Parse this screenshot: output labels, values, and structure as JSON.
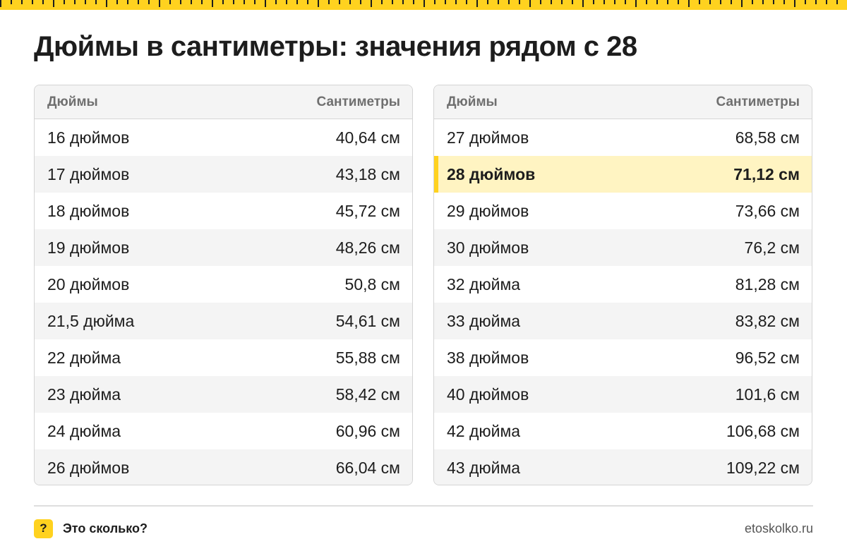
{
  "title": "Дюймы в сантиметры: значения рядом с 28",
  "colors": {
    "accent": "#ffd21f",
    "highlight_bg": "#fff4c2",
    "stripe_bg": "#f4f4f4"
  },
  "tables": [
    {
      "headers": {
        "inches": "Дюймы",
        "cm": "Сантиметры"
      },
      "rows": [
        {
          "inches": "16 дюймов",
          "cm": "40,64 см"
        },
        {
          "inches": "17 дюймов",
          "cm": "43,18 см"
        },
        {
          "inches": "18 дюймов",
          "cm": "45,72 см"
        },
        {
          "inches": "19 дюймов",
          "cm": "48,26 см"
        },
        {
          "inches": "20 дюймов",
          "cm": "50,8 см"
        },
        {
          "inches": "21,5 дюйма",
          "cm": "54,61 см"
        },
        {
          "inches": "22 дюйма",
          "cm": "55,88 см"
        },
        {
          "inches": "23 дюйма",
          "cm": "58,42 см"
        },
        {
          "inches": "24 дюйма",
          "cm": "60,96 см"
        },
        {
          "inches": "26 дюймов",
          "cm": "66,04 см"
        }
      ]
    },
    {
      "headers": {
        "inches": "Дюймы",
        "cm": "Сантиметры"
      },
      "rows": [
        {
          "inches": "27 дюймов",
          "cm": "68,58 см"
        },
        {
          "inches": "28 дюймов",
          "cm": "71,12 см",
          "highlighted": true
        },
        {
          "inches": "29 дюймов",
          "cm": "73,66 см"
        },
        {
          "inches": "30 дюймов",
          "cm": "76,2 см"
        },
        {
          "inches": "32 дюйма",
          "cm": "81,28 см"
        },
        {
          "inches": "33 дюйма",
          "cm": "83,82 см"
        },
        {
          "inches": "38 дюймов",
          "cm": "96,52 см"
        },
        {
          "inches": "40 дюймов",
          "cm": "101,6 см"
        },
        {
          "inches": "42 дюйма",
          "cm": "106,68 см"
        },
        {
          "inches": "43 дюйма",
          "cm": "109,22 см"
        }
      ]
    }
  ],
  "footer": {
    "badge_icon": "question-mark-icon",
    "badge_symbol": "?",
    "brand": "Это сколько?",
    "site": "etoskolko.ru"
  }
}
